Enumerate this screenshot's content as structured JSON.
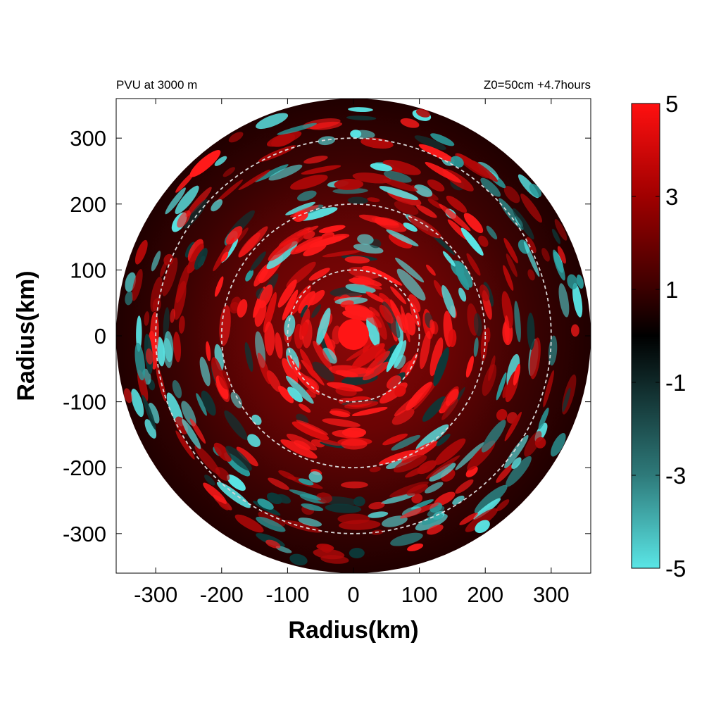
{
  "chart_data": {
    "type": "heatmap",
    "title_left": "PVU at  3000 m",
    "title_right": "Z0=50cm  +4.7hours",
    "xlabel": "Radius(km)",
    "ylabel": "Radius(km)",
    "xlim": [
      -360,
      360
    ],
    "ylim": [
      -360,
      360
    ],
    "xticks": [
      -300,
      -200,
      -100,
      0,
      100,
      200,
      300
    ],
    "yticks": [
      -300,
      -200,
      -100,
      0,
      100,
      200,
      300
    ],
    "xtick_labels": [
      "-300",
      "-200",
      "-100",
      "0",
      "100",
      "200",
      "300"
    ],
    "ytick_labels": [
      "-300",
      "-200",
      "-100",
      "0",
      "100",
      "200",
      "300"
    ],
    "domain_radius": 360,
    "reference_circles": [
      100,
      200,
      300
    ],
    "colorbar": {
      "min": -5,
      "max": 5,
      "ticks": [
        5,
        3,
        1,
        -1,
        -3,
        -5
      ],
      "tick_labels": [
        "5",
        "3",
        "1",
        "-1",
        "-3",
        "-5"
      ],
      "colors": {
        "low": "#5ae6e6",
        "mid": "#000000",
        "high": "#ff1010"
      }
    }
  }
}
